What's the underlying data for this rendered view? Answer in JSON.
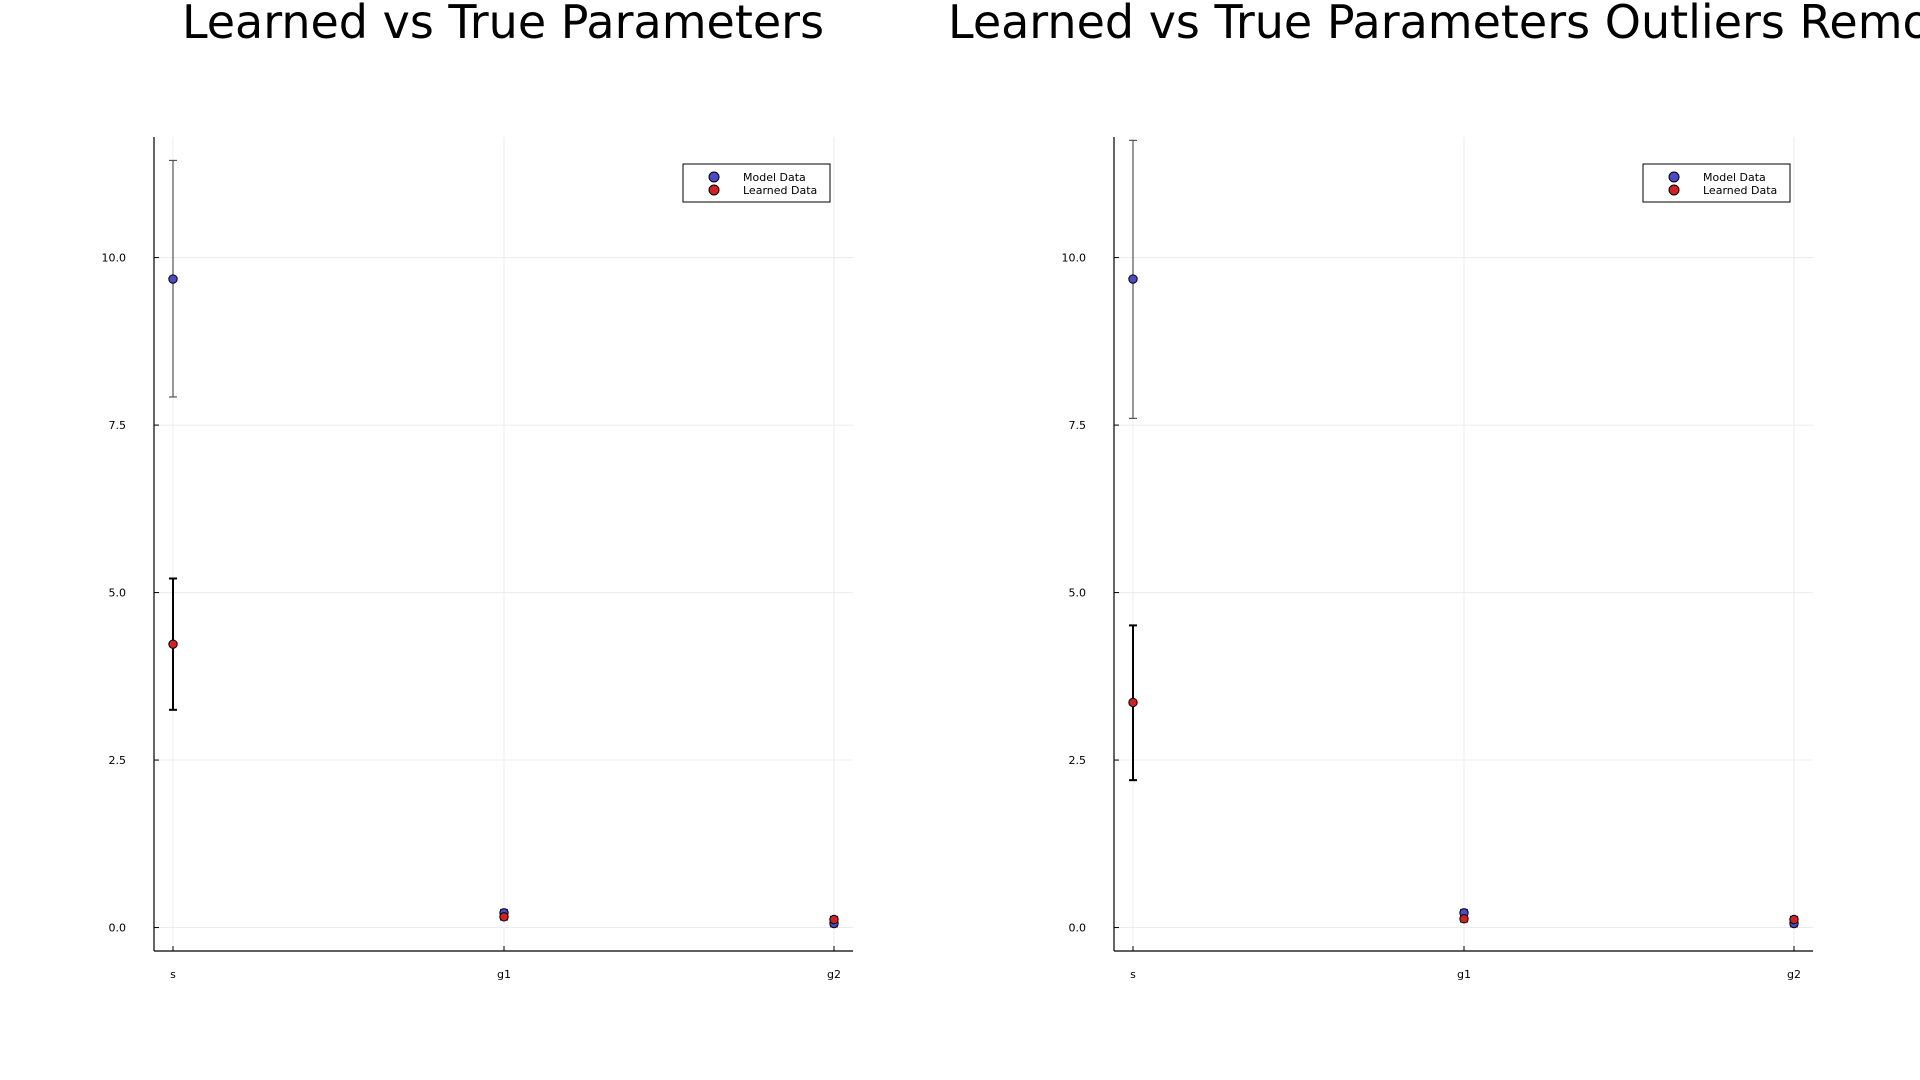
{
  "chart_data": [
    {
      "type": "scatter",
      "title": "Learned vs True Parameters",
      "categories": [
        "s",
        "g1",
        "g2"
      ],
      "ylim": [
        -0.35,
        11.8
      ],
      "yticks": [
        "0.0",
        "2.5",
        "5.0",
        "7.5",
        "10.0"
      ],
      "ytick_values": [
        0.0,
        2.5,
        5.0,
        7.5,
        10.0
      ],
      "grid": true,
      "legend_position": "top-right",
      "series": [
        {
          "name": "Model Data",
          "color": "#4a4acb",
          "values": [
            9.68,
            0.22,
            0.06
          ],
          "err_low": [
            7.92,
            0.17,
            0.01
          ],
          "err_high": [
            11.45,
            0.27,
            0.11
          ]
        },
        {
          "name": "Learned Data",
          "color": "#d42020",
          "values": [
            4.23,
            0.16,
            0.12
          ],
          "err_low": [
            3.25,
            0.12,
            0.08
          ],
          "err_high": [
            5.21,
            0.2,
            0.16
          ]
        }
      ]
    },
    {
      "type": "scatter",
      "title": "Learned vs True Parameters Outliers Removed",
      "categories": [
        "s",
        "g1",
        "g2"
      ],
      "ylim": [
        -0.35,
        11.8
      ],
      "yticks": [
        "0.0",
        "2.5",
        "5.0",
        "7.5",
        "10.0"
      ],
      "ytick_values": [
        0.0,
        2.5,
        5.0,
        7.5,
        10.0
      ],
      "grid": true,
      "legend_position": "top-right",
      "series": [
        {
          "name": "Model Data",
          "color": "#4a4acb",
          "values": [
            9.68,
            0.22,
            0.06
          ],
          "err_low": [
            7.6,
            0.17,
            0.01
          ],
          "err_high": [
            11.75,
            0.27,
            0.11
          ]
        },
        {
          "name": "Learned Data",
          "color": "#d42020",
          "values": [
            3.36,
            0.13,
            0.12
          ],
          "err_low": [
            2.2,
            0.09,
            0.08
          ],
          "err_high": [
            4.51,
            0.17,
            0.16
          ]
        }
      ]
    }
  ]
}
